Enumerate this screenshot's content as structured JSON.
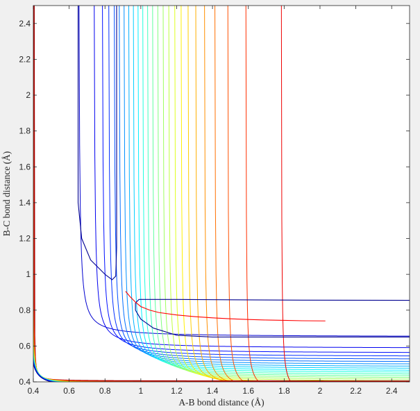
{
  "chart_data": {
    "type": "contour",
    "title": "",
    "xlabel": "A-B bond distance (Å)",
    "ylabel": "B-C bond distance (Å)",
    "xlim": [
      0.4,
      2.5
    ],
    "ylim": [
      0.4,
      2.5
    ],
    "xticks": [
      "0.4",
      "0.6",
      "0.8",
      "1",
      "1.2",
      "1.4",
      "1.6",
      "1.8",
      "2",
      "2.2",
      "2.4"
    ],
    "yticks": [
      "0.4",
      "0.6",
      "0.8",
      "1",
      "1.2",
      "1.4",
      "1.6",
      "1.8",
      "2",
      "2.2",
      "2.4"
    ],
    "xtick_values": [
      0.4,
      0.6,
      0.8,
      1.0,
      1.2,
      1.4,
      1.6,
      1.8,
      2.0,
      2.2,
      2.4
    ],
    "ytick_values": [
      0.4,
      0.6,
      0.8,
      1.0,
      1.2,
      1.4,
      1.6,
      1.8,
      2.0,
      2.2,
      2.4
    ],
    "grid": false,
    "colormap": "jet",
    "contour_asymptotes": {
      "description": "Each contour is an L-shaped level set of the potential energy surface; for each level the curve approaches x_asymptote on the vertical arm and y_asymptote on the horizontal arm.",
      "x_asymptote": [
        0.6506,
        0.7355,
        0.7815,
        0.817,
        0.8475,
        0.8755,
        0.9025,
        0.9285,
        0.9545,
        0.9805,
        1.007,
        1.034,
        1.062,
        1.091,
        1.121,
        1.1525,
        1.186,
        1.2215,
        1.2605,
        1.3035,
        1.3525,
        1.4105,
        1.483,
        1.584,
        1.7825
      ],
      "y_asymptote": [
        0.6506,
        0.5865,
        0.5595,
        0.54,
        0.5235,
        0.509,
        0.4955,
        0.483,
        0.4715,
        0.46,
        0.4495,
        0.439,
        0.429,
        0.4195,
        0.41,
        0.401,
        0.392,
        0.383,
        0.374,
        0.3655,
        0.357,
        0.348,
        0.339,
        0.33,
        0.32
      ],
      "level_colors": [
        "#00008f",
        "#0000af",
        "#0000cf",
        "#0000ef",
        "#000fff",
        "#002fff",
        "#004fff",
        "#006fff",
        "#008fff",
        "#00afff",
        "#00cfff",
        "#00efff",
        "#1fffdf",
        "#3fffbf",
        "#5fff9f",
        "#7fff7f",
        "#9fff5f",
        "#bfff3f",
        "#dfff1f",
        "#ffef00",
        "#ffcf00",
        "#ffaf00",
        "#ff8f00",
        "#ff6f00",
        "#ff4f00",
        "#ff2f00",
        "#ef0000",
        "#cf0000",
        "#af0000",
        "#8f0000"
      ]
    },
    "well_contours": [
      {
        "color": "#00008f",
        "points": [
          [
            0.65,
            2.5
          ],
          [
            0.65,
            1.9
          ],
          [
            0.65,
            1.4
          ],
          [
            0.67,
            1.2
          ],
          [
            0.72,
            1.08
          ],
          [
            0.8,
            1.0
          ],
          [
            0.84,
            0.97
          ],
          [
            0.86,
            0.99
          ],
          [
            0.865,
            1.15
          ],
          [
            0.865,
            1.5
          ],
          [
            0.865,
            1.9
          ],
          [
            0.865,
            2.5
          ]
        ]
      },
      {
        "color": "#00008f",
        "points": [
          [
            2.5,
            0.65
          ],
          [
            1.9,
            0.65
          ],
          [
            1.4,
            0.65
          ],
          [
            1.2,
            0.66
          ],
          [
            1.07,
            0.7
          ],
          [
            1.0,
            0.75
          ],
          [
            0.97,
            0.8
          ],
          [
            0.97,
            0.84
          ],
          [
            0.99,
            0.86
          ],
          [
            1.15,
            0.86
          ],
          [
            1.5,
            0.858
          ],
          [
            1.9,
            0.856
          ],
          [
            2.5,
            0.855
          ]
        ]
      }
    ],
    "reaction_path": {
      "color": "#ff0000",
      "points": [
        [
          0.915,
          0.905
        ],
        [
          0.94,
          0.875
        ],
        [
          0.97,
          0.845
        ],
        [
          1.0,
          0.82
        ],
        [
          1.05,
          0.8
        ],
        [
          1.1,
          0.787
        ],
        [
          1.2,
          0.773
        ],
        [
          1.3,
          0.764
        ],
        [
          1.4,
          0.757
        ],
        [
          1.5,
          0.752
        ],
        [
          1.6,
          0.748
        ],
        [
          1.7,
          0.745
        ],
        [
          1.8,
          0.743
        ],
        [
          1.9,
          0.741
        ],
        [
          2.03,
          0.74
        ]
      ]
    }
  }
}
